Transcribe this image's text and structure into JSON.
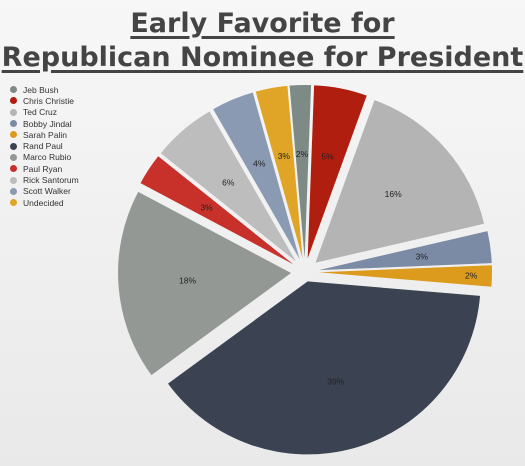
{
  "title_line1": "Early Favorite for",
  "title_line2": "Republican Nominee for President",
  "chart_data": {
    "type": "pie",
    "title": "Early Favorite for Republican Nominee for President",
    "legend_position": "left",
    "slices": [
      {
        "name": "Jeb Bush",
        "value": 2,
        "label": "2%",
        "color": "#7d8a86"
      },
      {
        "name": "Chris Christie",
        "value": 5,
        "label": "5%",
        "color": "#b01e0f"
      },
      {
        "name": "Ted Cruz",
        "value": 16,
        "label": "16%",
        "color": "#b4b4b4"
      },
      {
        "name": "Bobby Jindal",
        "value": 3,
        "label": "3%",
        "color": "#7c8ba5"
      },
      {
        "name": "Sarah Palin",
        "value": 2,
        "label": "2%",
        "color": "#dc9b1c"
      },
      {
        "name": "Rand Paul",
        "value": 39,
        "label": "39%",
        "color": "#3b4252"
      },
      {
        "name": "Marco Rubio",
        "value": 18,
        "label": "18%",
        "color": "#949894"
      },
      {
        "name": "Paul Ryan",
        "value": 3,
        "label": "3%",
        "color": "#c8302a"
      },
      {
        "name": "Rick Santorum",
        "value": 6,
        "label": "6%",
        "color": "#bdbdbd"
      },
      {
        "name": "Scott Walker",
        "value": 4,
        "label": "4%",
        "color": "#8a9ab3"
      },
      {
        "name": "Undecided",
        "value": 3,
        "label": "3%",
        "color": "#e0a526"
      }
    ]
  }
}
